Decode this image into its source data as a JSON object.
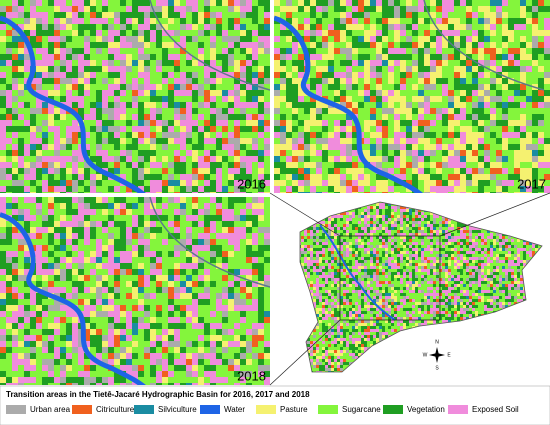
{
  "panels": [
    {
      "year": "2016"
    },
    {
      "year": "2017"
    },
    {
      "year": "2018"
    }
  ],
  "legend": {
    "title": "Transition areas in the Tietê-Jacaré Hydrographic Basin for 2016, 2017 and 2018",
    "items": [
      {
        "label": "Urban area",
        "color": "#ababab"
      },
      {
        "label": "Citriculture",
        "color": "#f0601e"
      },
      {
        "label": "Silviculture",
        "color": "#1a8ca2"
      },
      {
        "label": "Water",
        "color": "#1e64e6"
      },
      {
        "label": "Pasture",
        "color": "#f5f170"
      },
      {
        "label": "Sugarcane",
        "color": "#84f53c"
      },
      {
        "label": "Vegetation",
        "color": "#1f9e22"
      },
      {
        "label": "Exposed Soil",
        "color": "#f08cdc"
      }
    ]
  },
  "compass": {
    "north": "N",
    "east": "E",
    "south": "S",
    "west": "W"
  }
}
